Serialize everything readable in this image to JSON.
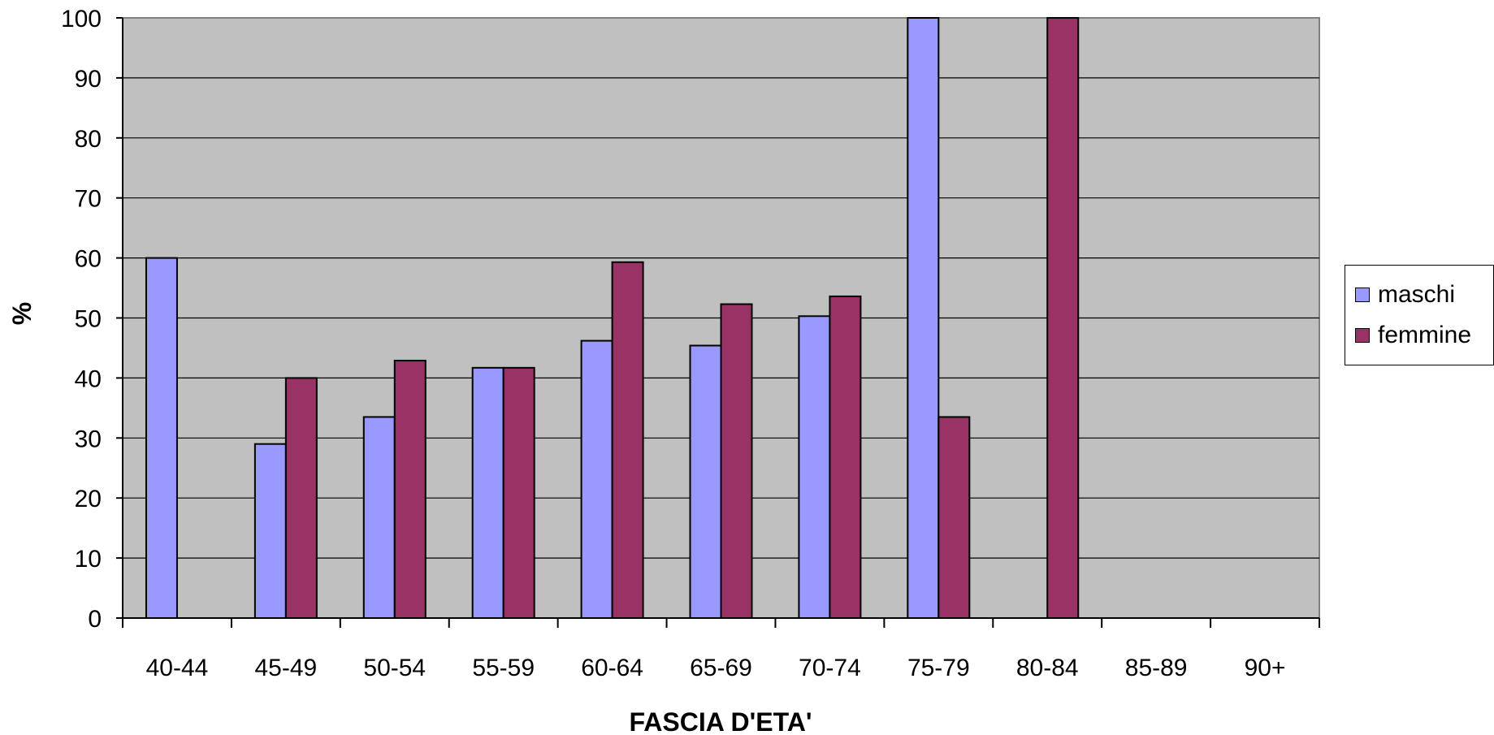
{
  "chart_data": {
    "type": "bar",
    "categories": [
      "40-44",
      "45-49",
      "50-54",
      "55-59",
      "60-64",
      "65-69",
      "70-74",
      "75-79",
      "80-84",
      "85-89",
      "90+"
    ],
    "series": [
      {
        "name": "maschi",
        "color": "#9999ff",
        "values": [
          60,
          29,
          33.5,
          41.7,
          46.2,
          45.4,
          50.3,
          100,
          null,
          null,
          null
        ]
      },
      {
        "name": "femmine",
        "color": "#993366",
        "values": [
          null,
          40,
          42.9,
          41.7,
          59.3,
          52.3,
          53.6,
          33.5,
          100,
          null,
          null
        ]
      }
    ],
    "title": "",
    "xlabel": "FASCIA D'ETA'",
    "ylabel": "%",
    "ylim": [
      0,
      100
    ],
    "yticks": [
      "0",
      "10",
      "20",
      "30",
      "40",
      "50",
      "60",
      "70",
      "80",
      "90",
      "100"
    ],
    "grid": true,
    "plot_background": "#c0c0c0",
    "legend_position": "right"
  }
}
